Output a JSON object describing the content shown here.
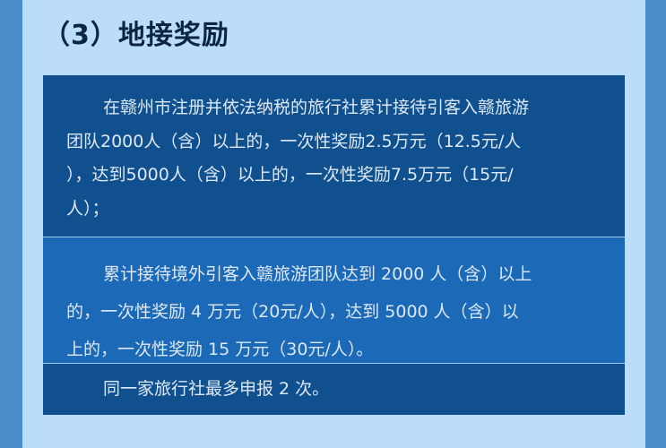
{
  "title": "（3）地接奖励",
  "sections": [
    {
      "lines": [
        "在赣州市注册并依法纳税的旅行社累计接待引客入赣旅游",
        "团队2000人（含）以上的，一次性奖励2.5万元（12.5元/人",
        "），达到5000人（含）以上的，一次性奖励7.5万元（15元/",
        "人）；"
      ]
    },
    {
      "lines": [
        "累计接待境外引客入赣旅游团队达到 2000 人（含）以上",
        "的，一次性奖励 4 万元（20元/人），达到 5000 人（含）以",
        "上的，一次性奖励 15 万元（30元/人）。"
      ]
    },
    {
      "lines": [
        "同一家旅行社最多申报 2 次。"
      ]
    }
  ],
  "colors": {
    "frame": "#4a8cc8",
    "background": "#bcdcfc",
    "dark_panel": "#11508f",
    "mid_panel": "#1b69b7",
    "text": "#dce8f5"
  }
}
